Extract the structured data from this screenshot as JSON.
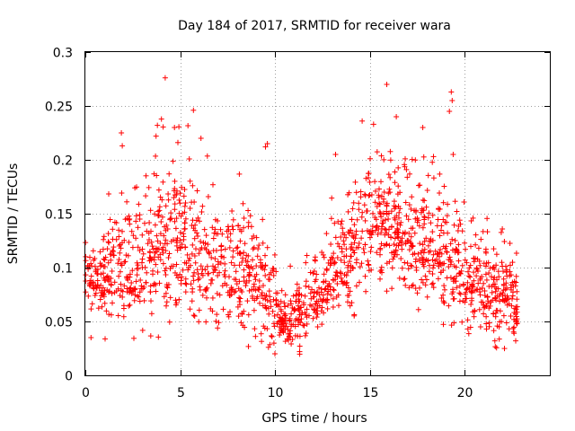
{
  "chart_data": {
    "type": "scatter",
    "title": "Day 184 of 2017, SRMTID for receiver wara",
    "xlabel": "GPS time / hours",
    "ylabel": "SRMTID / TECUs",
    "xlim": [
      0,
      24.5
    ],
    "ylim": [
      0,
      0.3
    ],
    "x_ticks": [
      0,
      5,
      10,
      15,
      20
    ],
    "x_tick_labels": [
      "0",
      "5",
      "10",
      "15",
      "20"
    ],
    "y_ticks": [
      0,
      0.05,
      0.1,
      0.15,
      0.2,
      0.25,
      0.3
    ],
    "y_tick_labels": [
      "0",
      "0.05",
      "0.1",
      "0.15",
      "0.2",
      "0.25",
      "0.3"
    ],
    "grid": true,
    "marker": "+",
    "series": [
      {
        "name": "SRMTID",
        "color": "#ff0000",
        "trend": {
          "x": [
            0,
            1,
            2,
            3,
            4,
            5,
            6,
            7,
            8,
            9,
            9.6,
            10.2,
            10.8,
            11.5,
            12.5,
            13.5,
            14.5,
            15.5,
            16.5,
            17.5,
            18.5,
            19.5,
            20.5,
            21.5,
            22.5,
            22.8
          ],
          "y": [
            0.085,
            0.09,
            0.1,
            0.095,
            0.125,
            0.13,
            0.105,
            0.1,
            0.095,
            0.09,
            0.07,
            0.052,
            0.048,
            0.058,
            0.082,
            0.1,
            0.125,
            0.15,
            0.13,
            0.125,
            0.125,
            0.1,
            0.085,
            0.08,
            0.07,
            0.06
          ]
        },
        "spread": {
          "x": [
            0,
            2,
            4,
            5,
            7,
            9.5,
            10.5,
            12,
            14,
            16,
            18,
            20,
            22.8
          ],
          "y": [
            0.02,
            0.03,
            0.045,
            0.045,
            0.035,
            0.03,
            0.012,
            0.02,
            0.035,
            0.035,
            0.035,
            0.03,
            0.02
          ]
        },
        "point_count": 1700,
        "seed": 184,
        "outliers": [
          {
            "x": 15.9,
            "y": 0.27
          },
          {
            "x": 19.3,
            "y": 0.263
          },
          {
            "x": 19.35,
            "y": 0.255
          },
          {
            "x": 19.2,
            "y": 0.245
          },
          {
            "x": 5.7,
            "y": 0.246
          },
          {
            "x": 16.4,
            "y": 0.24
          },
          {
            "x": 14.6,
            "y": 0.236
          },
          {
            "x": 15.2,
            "y": 0.233
          },
          {
            "x": 4.7,
            "y": 0.23
          },
          {
            "x": 3.8,
            "y": 0.232
          },
          {
            "x": 1.9,
            "y": 0.225
          },
          {
            "x": 1.95,
            "y": 0.213
          },
          {
            "x": 9.6,
            "y": 0.215
          },
          {
            "x": 9.5,
            "y": 0.212
          },
          {
            "x": 17.8,
            "y": 0.23
          },
          {
            "x": 13.2,
            "y": 0.205
          },
          {
            "x": 6.1,
            "y": 0.22
          },
          {
            "x": 19.4,
            "y": 0.205
          },
          {
            "x": 10.0,
            "y": 0.02
          },
          {
            "x": 11.3,
            "y": 0.022
          },
          {
            "x": 21.6,
            "y": 0.032
          },
          {
            "x": 22.7,
            "y": 0.032
          },
          {
            "x": 0.3,
            "y": 0.035
          }
        ]
      }
    ]
  }
}
